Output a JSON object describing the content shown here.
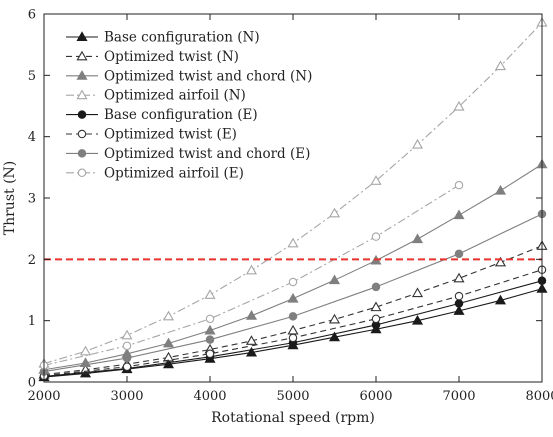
{
  "chart_data": {
    "type": "line",
    "title": "",
    "xlabel": "Rotational speed (rpm)",
    "ylabel": "Thrust (N)",
    "xlim": [
      2000,
      8000
    ],
    "ylim": [
      0,
      6
    ],
    "xticks": [
      2000,
      3000,
      4000,
      5000,
      6000,
      7000,
      8000
    ],
    "yticks": [
      0,
      1,
      2,
      3,
      4,
      5,
      6
    ],
    "xtick_labels": [
      "2000",
      "3000",
      "4000",
      "5000",
      "6000",
      "7000",
      "8000"
    ],
    "ytick_labels": [
      "0",
      "1",
      "2",
      "3",
      "4",
      "5",
      "6"
    ],
    "grid": false,
    "legend_position": "top-left",
    "reference_line": {
      "y": 2,
      "color": "#e8332f",
      "style": "dashed"
    },
    "series": [
      {
        "name": "Base configuration (N)",
        "color": "#1a1a1a",
        "dash": "solid",
        "marker": "triangle",
        "filled": true,
        "x": [
          2000,
          2500,
          3000,
          3500,
          4000,
          4500,
          5000,
          5500,
          6000,
          6500,
          7000,
          7500,
          8000
        ],
        "y": [
          0.08,
          0.14,
          0.21,
          0.29,
          0.38,
          0.48,
          0.6,
          0.73,
          0.86,
          1.0,
          1.16,
          1.33,
          1.52
        ]
      },
      {
        "name": "Optimized twist (N)",
        "color": "#333333",
        "dash": "dashed",
        "marker": "triangle",
        "filled": false,
        "x": [
          2000,
          2500,
          3000,
          3500,
          4000,
          4500,
          5000,
          5500,
          6000,
          6500,
          7000,
          7500,
          8000
        ],
        "y": [
          0.12,
          0.2,
          0.29,
          0.4,
          0.53,
          0.67,
          0.84,
          1.02,
          1.22,
          1.45,
          1.69,
          1.95,
          2.22
        ]
      },
      {
        "name": "Optimized twist and chord (N)",
        "color": "#7f7f7f",
        "dash": "solid",
        "marker": "triangle",
        "filled": true,
        "x": [
          2000,
          2500,
          3000,
          3500,
          4000,
          4500,
          5000,
          5500,
          6000,
          6500,
          7000,
          7500,
          8000
        ],
        "y": [
          0.2,
          0.31,
          0.46,
          0.63,
          0.84,
          1.08,
          1.36,
          1.66,
          1.98,
          2.33,
          2.72,
          3.12,
          3.55
        ]
      },
      {
        "name": "Optimized airfoil (N)",
        "color": "#a6a6a6",
        "dash": "dashdot",
        "marker": "triangle",
        "filled": false,
        "x": [
          2000,
          2500,
          3000,
          3500,
          4000,
          4500,
          5000,
          5500,
          6000,
          6500,
          7000,
          7500,
          8000
        ],
        "y": [
          0.3,
          0.5,
          0.76,
          1.07,
          1.42,
          1.82,
          2.26,
          2.75,
          3.28,
          3.87,
          4.49,
          5.15,
          5.86
        ]
      },
      {
        "name": "Base configuration (E)",
        "color": "#1a1a1a",
        "dash": "solid",
        "marker": "circle",
        "filled": true,
        "x": [
          2000,
          3000,
          4000,
          5000,
          6000,
          7000,
          8000
        ],
        "y": [
          0.09,
          0.22,
          0.41,
          0.64,
          0.93,
          1.28,
          1.65
        ]
      },
      {
        "name": "Optimized twist (E)",
        "color": "#333333",
        "dash": "dashed",
        "marker": "circle",
        "filled": false,
        "x": [
          2000,
          3000,
          4000,
          5000,
          6000,
          7000,
          8000
        ],
        "y": [
          0.1,
          0.25,
          0.46,
          0.72,
          1.03,
          1.4,
          1.83
        ]
      },
      {
        "name": "Optimized twist and chord (E)",
        "color": "#7f7f7f",
        "dash": "solid",
        "marker": "circle",
        "filled": true,
        "x": [
          2000,
          3000,
          4000,
          5000,
          6000,
          7000,
          8000
        ],
        "y": [
          0.17,
          0.39,
          0.69,
          1.07,
          1.55,
          2.09,
          2.74
        ]
      },
      {
        "name": "Optimized airfoil (E)",
        "color": "#a6a6a6",
        "dash": "dashdot",
        "marker": "circle",
        "filled": false,
        "x": [
          2000,
          3000,
          4000,
          5000,
          6000,
          7000
        ],
        "y": [
          0.27,
          0.59,
          1.03,
          1.63,
          2.37,
          3.21
        ]
      }
    ]
  }
}
